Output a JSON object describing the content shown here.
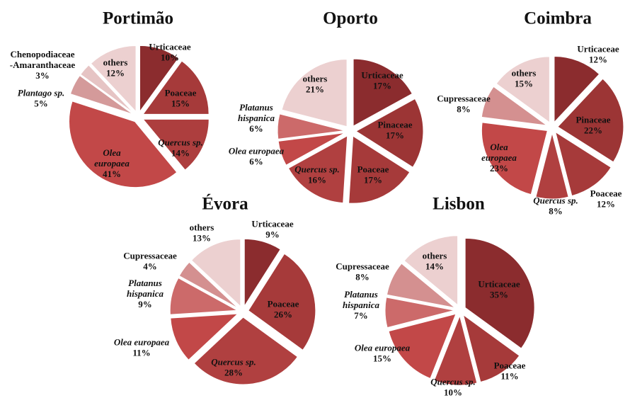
{
  "chart_data": [
    {
      "type": "pie",
      "title": "Portimão",
      "categories": [
        "Urticaceae",
        "Poaceae",
        "Quercus sp.",
        "Olea\neuropaea",
        "Plantago sp.",
        "Chenopodiaceae\n-Amaranthaceae",
        "others"
      ],
      "values": [
        10,
        15,
        14,
        41,
        5,
        3,
        12
      ],
      "value_labels": [
        "10%",
        "15%",
        "14%",
        "41%",
        "5%",
        "3%",
        "12%"
      ],
      "colors": [
        "#8b2c2e",
        "#a63a3a",
        "#ad3e3e",
        "#c24848",
        "#d49a9a",
        "#e6c4c4",
        "#ecd0d0"
      ]
    },
    {
      "type": "pie",
      "title": "Oporto",
      "categories": [
        "Urticaceae",
        "Pinaceae",
        "Poaceae",
        "Quercus sp.",
        "Olea europaea",
        "Platanus\nhispanica",
        "others"
      ],
      "values": [
        17,
        17,
        17,
        16,
        6,
        6,
        21
      ],
      "value_labels": [
        "17%",
        "17%",
        "17%",
        "16%",
        "6%",
        "6%",
        "21%"
      ],
      "colors": [
        "#8b2c2e",
        "#9c3535",
        "#a63a3a",
        "#b04040",
        "#c24848",
        "#cc6a6a",
        "#ecd0d0"
      ]
    },
    {
      "type": "pie",
      "title": "Coimbra",
      "categories": [
        "Urticaceae",
        "Pinaceae",
        "Poaceae",
        "Quercus sp.",
        "Olea\neuropaea",
        "Cupressaceae",
        "others"
      ],
      "values": [
        12,
        22,
        12,
        8,
        23,
        8,
        15
      ],
      "value_labels": [
        "12%",
        "22%",
        "12%",
        "8%",
        "23%",
        "8%",
        "15%"
      ],
      "colors": [
        "#8b2c2e",
        "#9c3535",
        "#a63a3a",
        "#b04040",
        "#c24848",
        "#d49090",
        "#ecd0d0"
      ]
    },
    {
      "type": "pie",
      "title": "Évora",
      "categories": [
        "Urticaceae",
        "Poaceae",
        "Quercus sp.",
        "Olea europaea",
        "Platanus\nhispanica",
        "Cupressaceae",
        "others"
      ],
      "values": [
        9,
        26,
        28,
        11,
        9,
        4,
        13
      ],
      "value_labels": [
        "9%",
        "26%",
        "28%",
        "11%",
        "9%",
        "4%",
        "13%"
      ],
      "colors": [
        "#8b2c2e",
        "#a63a3a",
        "#b04040",
        "#c24848",
        "#cc6a6a",
        "#d49090",
        "#ecd0d0"
      ]
    },
    {
      "type": "pie",
      "title": "Lisbon",
      "categories": [
        "Urticaceae",
        "Poaceae",
        "Quercus sp.",
        "Olea europaea",
        "Platanus\nhispanica",
        "Cupressaceae",
        "others"
      ],
      "values": [
        35,
        11,
        10,
        15,
        7,
        8,
        14
      ],
      "value_labels": [
        "35%",
        "11%",
        "10%",
        "15%",
        "7%",
        "8%",
        "14%"
      ],
      "colors": [
        "#8b2c2e",
        "#a63a3a",
        "#b04040",
        "#c24848",
        "#cc6a6a",
        "#d49090",
        "#ecd0d0"
      ]
    }
  ]
}
